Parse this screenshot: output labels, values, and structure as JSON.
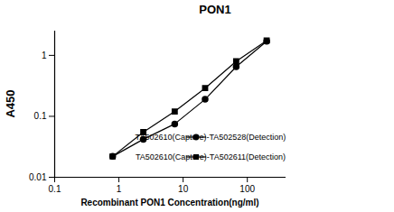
{
  "chart_data": {
    "type": "line",
    "title": "PON1",
    "x_label": "Recombinant PON1 Concentration(ng/ml)",
    "y_label": "A450",
    "log": true,
    "x": [
      0.8,
      2.4,
      7.4,
      22,
      67,
      200
    ],
    "series": [
      {
        "name": "TA502610(Capture)-TA502528(Detection)",
        "color": "#000000",
        "marker": "circle",
        "line_style": "solid",
        "values": [
          0.022,
          0.042,
          0.075,
          0.19,
          0.65,
          1.7
        ]
      },
      {
        "name": "TA502610(Capture)-TA502611(Detection)",
        "color": "#000000",
        "marker": "square",
        "line_style": "solid",
        "values": [
          0.022,
          0.055,
          0.12,
          0.29,
          0.8,
          1.75
        ]
      }
    ],
    "xlim": [
      0.1,
      400
    ],
    "xticks": [
      0.1,
      1,
      10,
      100
    ],
    "ylim": [
      0.01,
      2.5
    ],
    "yticks": [
      0.01,
      0.1,
      1
    ],
    "legend": "right",
    "grid": false
  }
}
